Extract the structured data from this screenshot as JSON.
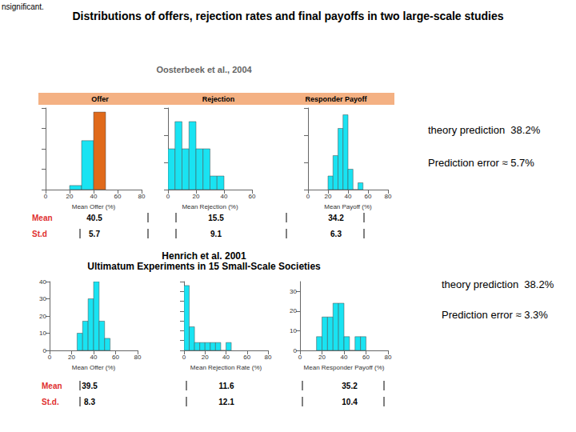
{
  "header": "nsignificant.",
  "title": "Distributions of offers, rejection rates and final payoffs in two large-scale studies",
  "studies": [
    {
      "source": "Oosterbeek et al., 2004",
      "panel_labels": [
        "Offer",
        "Rejection",
        "Responder Payoff"
      ],
      "stats": [
        {
          "label": "Mean",
          "values": [
            40.5,
            15.5,
            34.2
          ]
        },
        {
          "label": "St.d",
          "values": [
            5.7,
            9.1,
            6.3
          ]
        }
      ],
      "notes": [
        "theory prediction  38.2%",
        "Prediction error ≈ 5.7%"
      ]
    },
    {
      "source": "Henrich et al. 2001",
      "subtitle": "Ultimatum Experiments in 15 Small-Scale Societies",
      "stats": [
        {
          "label": "Mean",
          "values": [
            39.5,
            11.6,
            35.2
          ]
        },
        {
          "label": "St.d.",
          "values": [
            8.3,
            12.1,
            10.4
          ]
        }
      ],
      "notes": [
        "theory prediction  38.2%",
        "Prediction error ≈ 3.3%"
      ]
    }
  ],
  "chart_data": [
    {
      "type": "histogram",
      "xlabel": "Mean Offer (%)",
      "bins": [
        20,
        30,
        40,
        50
      ],
      "counts": [
        1,
        12,
        19
      ],
      "colors": [
        "#19e3f2",
        "#19e3f2",
        "#e06a1b"
      ],
      "xlim": [
        0,
        80
      ],
      "xticks": [
        0,
        20,
        40,
        60,
        80
      ],
      "ylim": [
        0,
        20
      ],
      "yticks": [
        0,
        5,
        10,
        15,
        20
      ],
      "tick_labels": "x"
    },
    {
      "type": "histogram",
      "xlabel": "Mean Rejection (%)",
      "bins": [
        0,
        5,
        10,
        15,
        20,
        25,
        30,
        35,
        40
      ],
      "counts": [
        3,
        5,
        3,
        5,
        3,
        3,
        1,
        1
      ],
      "color": "#19e3f2",
      "xlim": [
        0,
        60
      ],
      "xticks": [
        0,
        20,
        40,
        60
      ],
      "ylim": [
        0,
        6
      ],
      "yticks": [
        0,
        2,
        4,
        6
      ],
      "tick_labels": "x"
    },
    {
      "type": "histogram",
      "xlabel": "Mean Payoff (%)",
      "bins": [
        20,
        25,
        30,
        35,
        40,
        45,
        50,
        55
      ],
      "counts": [
        2,
        5,
        9,
        11,
        3,
        0,
        1
      ],
      "color": "#19e3f2",
      "xlim": [
        0,
        80
      ],
      "xticks": [
        0,
        20,
        40,
        60,
        80
      ],
      "ylim": [
        0,
        12
      ],
      "yticks": [
        0,
        4,
        8,
        12
      ],
      "tick_labels": "x"
    },
    {
      "type": "histogram",
      "xlabel": "Mean Offer (%)",
      "bins": [
        25,
        30,
        35,
        40,
        45,
        50,
        55
      ],
      "counts": [
        10,
        17,
        30,
        40,
        17,
        7
      ],
      "color": "#19e3f2",
      "xlim": [
        0,
        80
      ],
      "xticks": [
        0,
        20,
        40,
        60,
        80
      ],
      "ylim": [
        0,
        40
      ],
      "yticks": [
        0,
        10,
        20,
        30,
        40
      ],
      "tick_labels": true
    },
    {
      "type": "histogram",
      "xlabel": "Mean Rejection Rate (%)",
      "bins": [
        0,
        5,
        10,
        15,
        20,
        25,
        30,
        35,
        40,
        45
      ],
      "counts": [
        33,
        12,
        4,
        4,
        4,
        4,
        4,
        0,
        4
      ],
      "color": "#19e3f2",
      "xlim": [
        0,
        80
      ],
      "xticks": [
        0,
        20,
        40,
        60,
        80
      ],
      "ylim": [
        0,
        35
      ],
      "yticks": [
        0,
        5,
        10,
        15,
        20,
        25,
        30,
        35
      ],
      "tick_labels": "x"
    },
    {
      "type": "histogram",
      "xlabel": "Mean Responder Payoff (%)",
      "bins": [
        15,
        20,
        25,
        30,
        35,
        40,
        45,
        50,
        55,
        60
      ],
      "counts": [
        7,
        17,
        17,
        24,
        24,
        7,
        0,
        7,
        7
      ],
      "color": "#19e3f2",
      "xlim": [
        0,
        80
      ],
      "xticks": [
        0,
        20,
        40,
        60,
        80
      ],
      "ylim": [
        0,
        35
      ],
      "yticks": [
        0,
        10,
        20,
        30
      ],
      "tick_labels": true
    }
  ]
}
